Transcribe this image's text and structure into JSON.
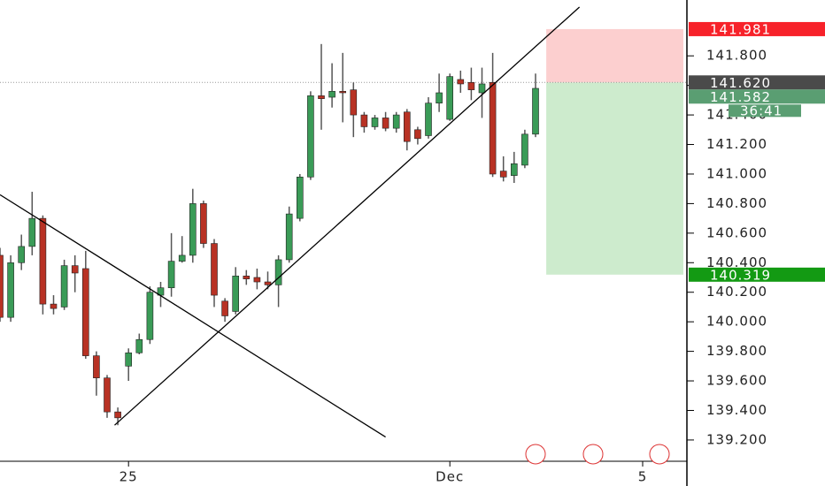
{
  "chart_data": {
    "type": "candlestick",
    "categories": [
      null,
      null,
      null,
      null,
      null,
      null,
      null,
      null,
      null,
      null,
      null,
      null,
      "25",
      null,
      null,
      null,
      null,
      null,
      null,
      null,
      null,
      null,
      null,
      null,
      null,
      null,
      null,
      null,
      null,
      null,
      null,
      null,
      null,
      null,
      null,
      null,
      null,
      null,
      null,
      null,
      null,
      null,
      "Dec",
      null,
      null,
      null,
      null,
      null,
      null,
      null,
      null,
      null,
      null,
      null,
      null,
      null,
      null,
      null,
      null,
      null,
      "5"
    ],
    "open": [
      140.45,
      140.03,
      140.4,
      140.51,
      140.7,
      140.12,
      140.1,
      140.38,
      140.36,
      139.77,
      139.62,
      139.39,
      139.7,
      139.79,
      139.88,
      140.18,
      140.23,
      140.41,
      140.45,
      140.8,
      140.53,
      140.14,
      140.07,
      140.31,
      140.3,
      140.27,
      140.25,
      140.42,
      140.7,
      140.98,
      141.53,
      141.52,
      141.56,
      141.57,
      141.4,
      141.32,
      141.38,
      141.31,
      141.42,
      141.3,
      141.26,
      141.48,
      141.37,
      141.64,
      141.62,
      141.55,
      141.62,
      141.02,
      140.99,
      141.06,
      141.27,
      null,
      null,
      null,
      null,
      null,
      null,
      null,
      null,
      null,
      null
    ],
    "high": [
      140.5,
      140.45,
      140.59,
      140.88,
      140.72,
      140.18,
      140.42,
      140.45,
      140.48,
      139.8,
      139.64,
      139.42,
      139.82,
      139.92,
      140.24,
      140.27,
      140.6,
      140.58,
      140.9,
      140.82,
      140.56,
      140.16,
      140.37,
      140.35,
      140.36,
      140.34,
      140.45,
      140.78,
      141.0,
      141.56,
      141.88,
      141.75,
      141.82,
      141.62,
      141.42,
      141.4,
      141.42,
      141.42,
      141.44,
      141.32,
      141.52,
      141.68,
      141.68,
      141.7,
      141.72,
      141.72,
      141.82,
      141.12,
      141.15,
      141.3,
      141.68,
      null,
      null,
      null,
      null,
      null,
      null,
      null,
      null,
      null,
      null
    ],
    "low": [
      140.0,
      140.0,
      140.35,
      140.45,
      140.05,
      140.05,
      140.08,
      140.2,
      139.75,
      139.5,
      139.35,
      139.3,
      139.6,
      139.78,
      139.85,
      140.1,
      140.17,
      140.4,
      140.4,
      140.5,
      140.1,
      140.0,
      140.05,
      140.25,
      140.22,
      140.22,
      140.1,
      140.4,
      140.68,
      140.96,
      141.3,
      141.45,
      141.35,
      141.25,
      141.28,
      141.3,
      141.29,
      141.28,
      141.16,
      141.2,
      141.24,
      141.42,
      141.36,
      141.55,
      141.5,
      141.38,
      140.98,
      140.95,
      140.94,
      141.04,
      141.25,
      null,
      null,
      null,
      null,
      null,
      null,
      null,
      null,
      null,
      null
    ],
    "close": [
      140.03,
      140.4,
      140.51,
      140.7,
      140.12,
      140.09,
      140.38,
      140.33,
      139.77,
      139.62,
      139.39,
      139.35,
      139.79,
      139.88,
      140.2,
      140.23,
      140.41,
      140.45,
      140.8,
      140.53,
      140.18,
      140.04,
      140.31,
      140.29,
      140.27,
      140.25,
      140.42,
      140.73,
      140.98,
      141.53,
      141.51,
      141.56,
      141.55,
      141.4,
      141.32,
      141.38,
      141.31,
      141.4,
      141.22,
      141.24,
      141.48,
      141.55,
      141.66,
      141.61,
      141.57,
      141.61,
      141.0,
      140.98,
      141.07,
      141.27,
      141.58,
      null,
      null,
      null,
      null,
      null,
      null,
      null,
      null,
      null,
      null
    ],
    "up_color": "#3a9b57",
    "down_color": "#b83224",
    "ylim": [
      139.056,
      142.178
    ],
    "yticks": [
      {
        "value": 139.2,
        "label": "139.200"
      },
      {
        "value": 139.4,
        "label": "139.400"
      },
      {
        "value": 139.6,
        "label": "139.600"
      },
      {
        "value": 139.8,
        "label": "139.800"
      },
      {
        "value": 140.0,
        "label": "140.000"
      },
      {
        "value": 140.2,
        "label": "140.200"
      },
      {
        "value": 140.4,
        "label": "140.400"
      },
      {
        "value": 140.6,
        "label": "140.600"
      },
      {
        "value": 140.8,
        "label": "140.800"
      },
      {
        "value": 141.0,
        "label": "141.000"
      },
      {
        "value": 141.2,
        "label": "141.200"
      },
      {
        "value": 141.4,
        "label": "141.400"
      },
      {
        "value": 141.6,
        "label": "141.600"
      },
      {
        "value": 141.8,
        "label": "141.800"
      }
    ],
    "trend_lines": [
      {
        "x": [
          0,
          36
        ],
        "y": [
          140.86,
          139.22
        ]
      },
      {
        "x": [
          10.7,
          54.1
        ],
        "y": [
          139.3,
          142.13
        ]
      }
    ],
    "position": {
      "x_range": [
        51,
        64
      ],
      "stop": {
        "value": 141.981,
        "label": "141.981",
        "color": "#f7222a"
      },
      "entry": {
        "value": 141.62,
        "label": "141.620",
        "color": "#4a4a4a"
      },
      "target": {
        "value": 140.319,
        "label": "140.319",
        "color": "#139a13"
      }
    },
    "last_price": {
      "value": 141.582,
      "label": "141.582",
      "countdown": "36:41",
      "color": "#5a9e72"
    }
  }
}
